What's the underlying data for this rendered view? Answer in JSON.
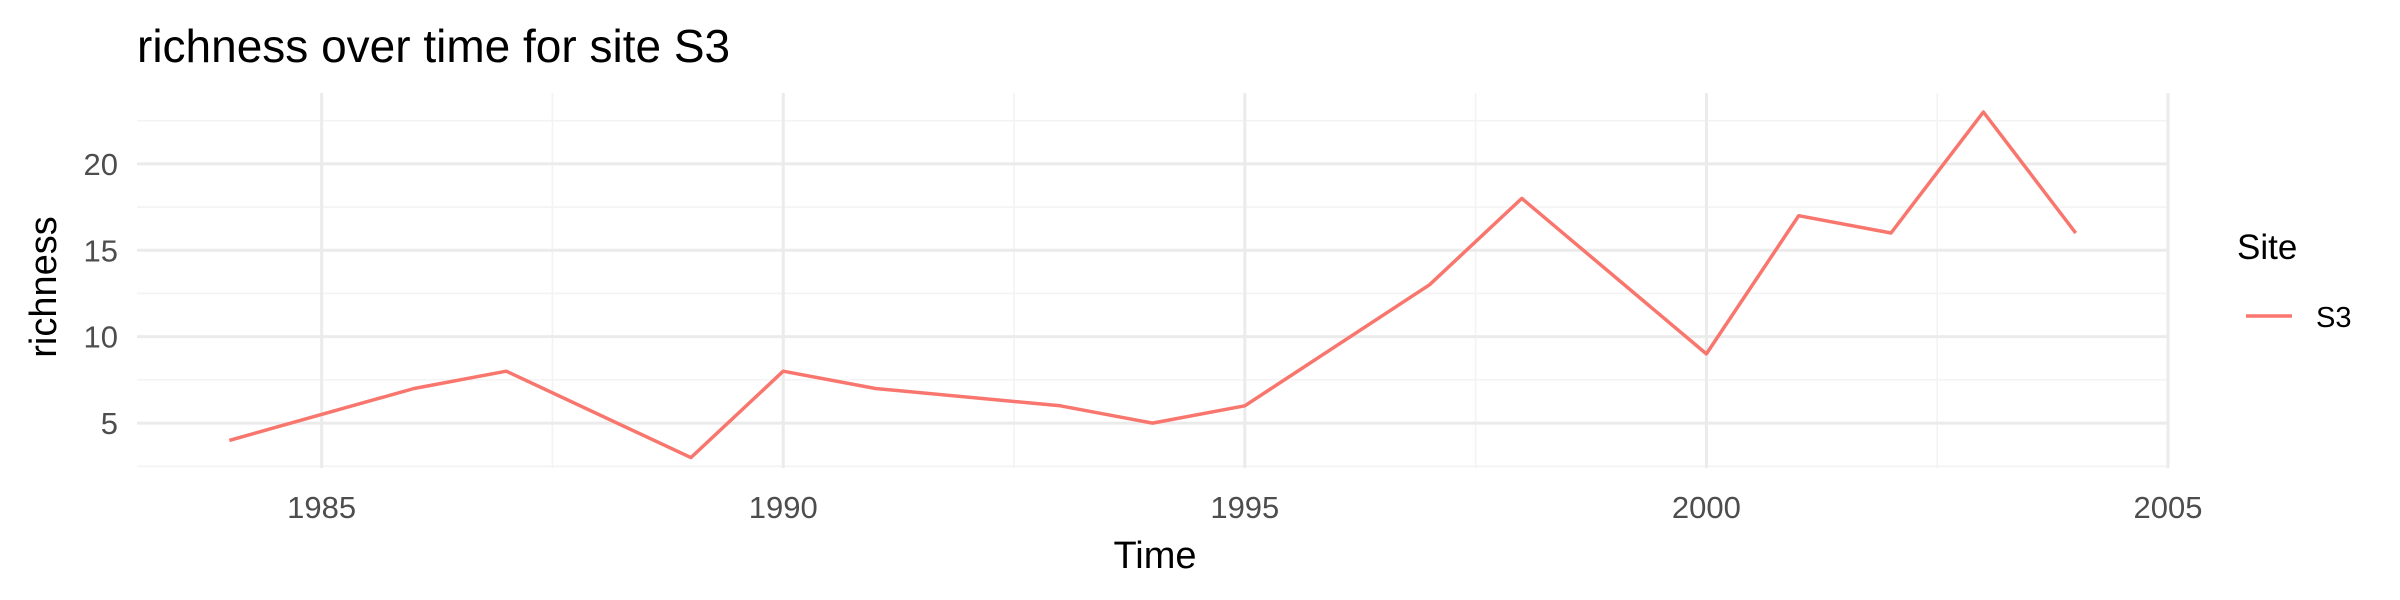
{
  "chart_data": {
    "type": "line",
    "title": "richness over time for site S3",
    "xlabel": "Time",
    "ylabel": "richness",
    "xlim": [
      1983,
      2005
    ],
    "ylim": [
      2.4,
      24.1
    ],
    "x_ticks": [
      1985,
      1990,
      1995,
      2000,
      2005
    ],
    "y_ticks": [
      5,
      10,
      15,
      20
    ],
    "grid": true,
    "legend": {
      "title": "Site",
      "position": "right"
    },
    "series": [
      {
        "name": "S3",
        "color": "#f8766d",
        "x": [
          1984,
          1986,
          1987,
          1989,
          1990,
          1991,
          1993,
          1994,
          1995,
          1997,
          1998,
          2000,
          2001,
          2002,
          2003,
          2004
        ],
        "y": [
          4,
          7,
          8,
          3,
          8,
          7,
          6,
          5,
          6,
          13,
          18,
          9,
          17,
          16,
          23,
          16
        ]
      }
    ]
  }
}
